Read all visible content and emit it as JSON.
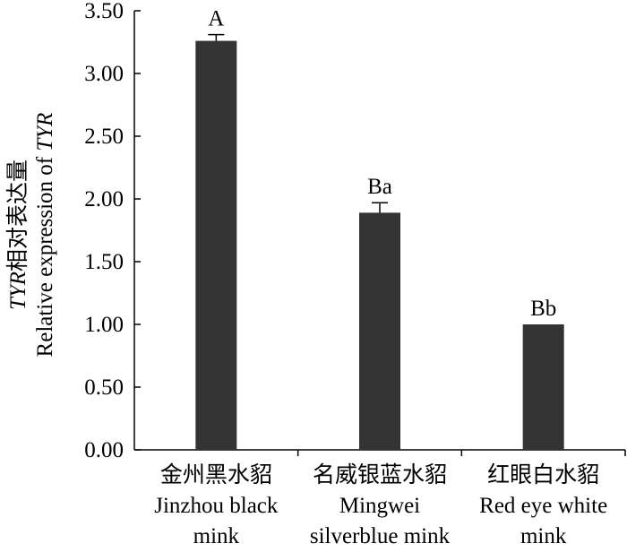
{
  "chart_data": {
    "type": "bar",
    "title": "",
    "categories": [
      [
        "金州黑水貂",
        "Jinzhou black",
        "mink"
      ],
      [
        "名威银蓝水貂",
        "Mingwei",
        "silverblue mink"
      ],
      [
        "红眼白水貂",
        "Red eye white",
        "mink"
      ]
    ],
    "values": [
      3.26,
      1.89,
      1.0
    ],
    "errors": [
      0.05,
      0.08,
      0.0
    ],
    "data_labels": [
      "A",
      "Ba",
      "Bb"
    ],
    "ylabel": {
      "line1_italic": "TYR",
      "line1_rest": "相对表达量",
      "line2_plain": "Relative expression of ",
      "line2_italic": "TYR"
    },
    "ylim": [
      0,
      3.5
    ],
    "yticks": [
      "0.00",
      "0.50",
      "1.00",
      "1.50",
      "2.00",
      "2.50",
      "3.00",
      "3.50"
    ],
    "grid": false,
    "legend": "none",
    "bar_color": "#333333"
  }
}
